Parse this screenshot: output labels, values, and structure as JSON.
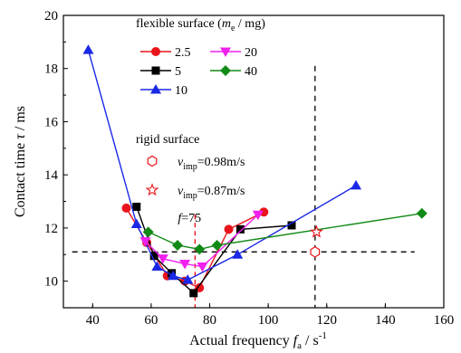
{
  "chart_data": {
    "type": "line",
    "xlabel": {
      "main": "Actual frequency ",
      "var": "f",
      "sub": "a",
      "unit": " / s",
      "sup": "-1"
    },
    "ylabel": {
      "main": "Contact time ",
      "var": "τ",
      "unit": " / ms"
    },
    "xlim": [
      30,
      160
    ],
    "ylim": [
      9,
      20
    ],
    "xticks": [
      40,
      60,
      80,
      100,
      120,
      140,
      160
    ],
    "yticks": [
      10,
      12,
      14,
      16,
      18,
      20
    ],
    "legend_title": {
      "pre": "flexible surface (",
      "var": "m",
      "sub": "e",
      "post": " / mg)"
    },
    "rigid_title": "rigid surface",
    "series": [
      {
        "name": "2.5",
        "color": "#e8141b",
        "marker": "circle",
        "x": [
          51.5,
          58.5,
          65.5,
          71.5,
          76.5,
          86.5,
          98.5
        ],
        "y": [
          12.75,
          11.45,
          10.2,
          10.0,
          9.75,
          11.95,
          12.6
        ]
      },
      {
        "name": "5",
        "color": "#000000",
        "marker": "square",
        "x": [
          55,
          61,
          67,
          74.5,
          90.5,
          108
        ],
        "y": [
          12.8,
          10.95,
          10.3,
          9.55,
          11.95,
          12.1
        ]
      },
      {
        "name": "10",
        "color": "#1a28e6",
        "marker": "triangle-up",
        "x": [
          38.5,
          55,
          62,
          67.5,
          72.5,
          89.5,
          130
        ],
        "y": [
          18.7,
          12.15,
          10.55,
          10.2,
          10.05,
          11.0,
          13.6
        ]
      },
      {
        "name": "20",
        "color": "#f020ee",
        "marker": "triangle-down",
        "x": [
          58,
          64,
          71.5,
          77.5,
          96.5
        ],
        "y": [
          11.5,
          10.85,
          10.65,
          10.55,
          12.5
        ]
      },
      {
        "name": "40",
        "color": "#118a17",
        "marker": "diamond",
        "x": [
          59,
          69,
          76.5,
          82.5,
          152.5
        ],
        "y": [
          11.85,
          11.35,
          11.2,
          11.35,
          12.55
        ]
      }
    ],
    "rigid_points": [
      {
        "label_var": "v",
        "label_sub": "imp",
        "label_value": "=0.98m/s",
        "marker": "hexagon",
        "color": "#e8141b",
        "x": 116,
        "y": 11.1
      },
      {
        "label_var": "v",
        "label_sub": "imp",
        "label_value": "=0.87m/s",
        "marker": "star",
        "color": "#e8141b",
        "x": 116.5,
        "y": 11.85
      }
    ],
    "reference_lines": {
      "h_black_dashed_y": 11.1,
      "v_black_dashed_x": 116,
      "v_red_dashed_x": 75
    },
    "annotation": {
      "var": "f",
      "text": "=75"
    }
  }
}
